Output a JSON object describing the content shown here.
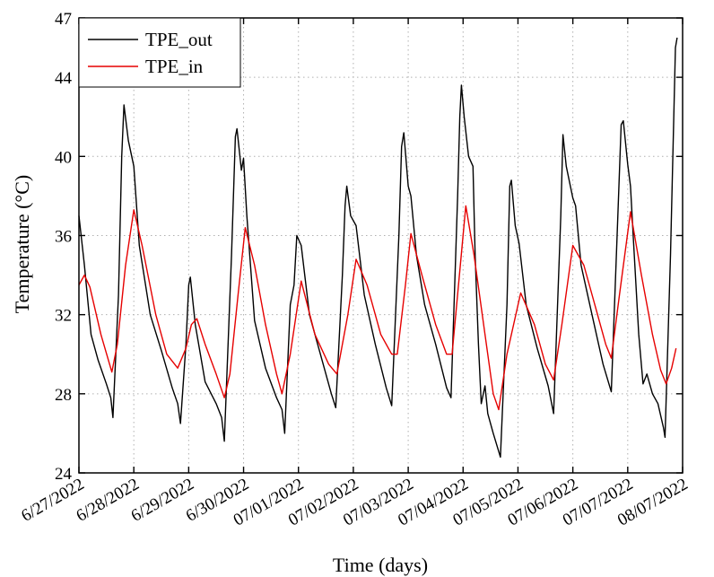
{
  "chart_data": {
    "type": "line",
    "title": "",
    "xlabel": "Time (days)",
    "ylabel": "Temperature (°C)",
    "ylim": [
      24,
      47
    ],
    "xlim": [
      0,
      11
    ],
    "y_ticks": [
      24,
      28,
      32,
      36,
      40,
      44,
      47
    ],
    "x_tick_labels": [
      "6/27/2022",
      "6/28/2022",
      "6/29/2022",
      "6/30/2022",
      "07/01/2022",
      "07/02/2022",
      "07/03/2022",
      "07/04/2022",
      "07/05/2022",
      "07/06/2022",
      "07/07/2022",
      "08/07/2022"
    ],
    "grid": true,
    "legend_position": "top-left",
    "series": [
      {
        "name": "TPE_out",
        "color": "#000000",
        "points": [
          [
            0.0,
            37.0
          ],
          [
            0.1,
            34.5
          ],
          [
            0.22,
            31.0
          ],
          [
            0.35,
            29.7
          ],
          [
            0.5,
            28.5
          ],
          [
            0.58,
            27.8
          ],
          [
            0.62,
            26.8
          ],
          [
            0.72,
            33.0
          ],
          [
            0.78,
            40.0
          ],
          [
            0.82,
            42.6
          ],
          [
            0.9,
            40.8
          ],
          [
            1.0,
            39.5
          ],
          [
            1.1,
            35.5
          ],
          [
            1.3,
            32.0
          ],
          [
            1.5,
            30.2
          ],
          [
            1.7,
            28.3
          ],
          [
            1.8,
            27.5
          ],
          [
            1.85,
            26.5
          ],
          [
            1.95,
            30.5
          ],
          [
            2.0,
            33.5
          ],
          [
            2.03,
            33.9
          ],
          [
            2.12,
            31.5
          ],
          [
            2.3,
            28.6
          ],
          [
            2.5,
            27.5
          ],
          [
            2.6,
            26.8
          ],
          [
            2.65,
            25.6
          ],
          [
            2.78,
            35.0
          ],
          [
            2.85,
            41.0
          ],
          [
            2.88,
            41.4
          ],
          [
            2.96,
            39.3
          ],
          [
            3.0,
            39.9
          ],
          [
            3.06,
            37.0
          ],
          [
            3.2,
            31.7
          ],
          [
            3.4,
            29.3
          ],
          [
            3.6,
            27.8
          ],
          [
            3.7,
            27.2
          ],
          [
            3.75,
            26.0
          ],
          [
            3.85,
            32.5
          ],
          [
            3.92,
            33.5
          ],
          [
            3.97,
            36.0
          ],
          [
            4.05,
            35.5
          ],
          [
            4.2,
            32.0
          ],
          [
            4.4,
            30.0
          ],
          [
            4.6,
            28.0
          ],
          [
            4.68,
            27.3
          ],
          [
            4.8,
            34.0
          ],
          [
            4.85,
            37.5
          ],
          [
            4.88,
            38.5
          ],
          [
            4.95,
            37.0
          ],
          [
            5.05,
            36.5
          ],
          [
            5.2,
            33.0
          ],
          [
            5.4,
            30.5
          ],
          [
            5.6,
            28.3
          ],
          [
            5.7,
            27.4
          ],
          [
            5.83,
            36.0
          ],
          [
            5.88,
            40.5
          ],
          [
            5.92,
            41.2
          ],
          [
            6.0,
            38.5
          ],
          [
            6.05,
            38.0
          ],
          [
            6.15,
            35.0
          ],
          [
            6.3,
            32.5
          ],
          [
            6.5,
            30.5
          ],
          [
            6.7,
            28.3
          ],
          [
            6.78,
            27.8
          ],
          [
            6.9,
            38.0
          ],
          [
            6.94,
            42.0
          ],
          [
            6.97,
            43.6
          ],
          [
            7.02,
            42.0
          ],
          [
            7.1,
            40.0
          ],
          [
            7.18,
            39.5
          ],
          [
            7.22,
            35.0
          ],
          [
            7.28,
            30.5
          ],
          [
            7.33,
            27.5
          ],
          [
            7.4,
            28.4
          ],
          [
            7.45,
            27.0
          ],
          [
            7.55,
            26.0
          ],
          [
            7.68,
            24.8
          ],
          [
            7.8,
            32.5
          ],
          [
            7.85,
            38.5
          ],
          [
            7.88,
            38.8
          ],
          [
            7.95,
            36.5
          ],
          [
            8.02,
            35.6
          ],
          [
            8.15,
            32.5
          ],
          [
            8.35,
            30.3
          ],
          [
            8.55,
            28.4
          ],
          [
            8.65,
            27.0
          ],
          [
            8.78,
            37.0
          ],
          [
            8.82,
            41.1
          ],
          [
            8.88,
            39.5
          ],
          [
            9.0,
            37.9
          ],
          [
            9.05,
            37.5
          ],
          [
            9.15,
            34.5
          ],
          [
            9.35,
            32.0
          ],
          [
            9.55,
            29.5
          ],
          [
            9.7,
            28.1
          ],
          [
            9.82,
            37.0
          ],
          [
            9.88,
            41.6
          ],
          [
            9.92,
            41.8
          ],
          [
            10.0,
            39.6
          ],
          [
            10.05,
            38.5
          ],
          [
            10.1,
            36.0
          ],
          [
            10.2,
            31.0
          ],
          [
            10.28,
            28.5
          ],
          [
            10.35,
            29.0
          ],
          [
            10.45,
            28.0
          ],
          [
            10.55,
            27.5
          ],
          [
            10.65,
            26.3
          ],
          [
            10.68,
            25.8
          ],
          [
            10.78,
            35.0
          ],
          [
            10.87,
            45.5
          ],
          [
            10.9,
            46.0
          ]
        ]
      },
      {
        "name": "TPE_in",
        "color": "#e60000",
        "points": [
          [
            0.0,
            33.5
          ],
          [
            0.1,
            34.0
          ],
          [
            0.2,
            33.4
          ],
          [
            0.4,
            31.0
          ],
          [
            0.6,
            29.1
          ],
          [
            0.7,
            30.5
          ],
          [
            0.85,
            34.5
          ],
          [
            1.0,
            37.3
          ],
          [
            1.15,
            35.5
          ],
          [
            1.4,
            32.0
          ],
          [
            1.6,
            30.0
          ],
          [
            1.8,
            29.3
          ],
          [
            1.95,
            30.3
          ],
          [
            2.05,
            31.5
          ],
          [
            2.15,
            31.8
          ],
          [
            2.3,
            30.5
          ],
          [
            2.5,
            29.0
          ],
          [
            2.65,
            27.8
          ],
          [
            2.75,
            29.0
          ],
          [
            2.9,
            33.0
          ],
          [
            3.03,
            36.4
          ],
          [
            3.2,
            34.5
          ],
          [
            3.4,
            31.5
          ],
          [
            3.6,
            29.0
          ],
          [
            3.7,
            28.0
          ],
          [
            3.85,
            30.0
          ],
          [
            4.05,
            33.7
          ],
          [
            4.3,
            31.0
          ],
          [
            4.55,
            29.5
          ],
          [
            4.7,
            29.0
          ],
          [
            4.9,
            32.0
          ],
          [
            5.05,
            34.8
          ],
          [
            5.25,
            33.5
          ],
          [
            5.5,
            31.0
          ],
          [
            5.7,
            30.0
          ],
          [
            5.8,
            30.0
          ],
          [
            5.95,
            33.5
          ],
          [
            6.05,
            36.1
          ],
          [
            6.25,
            34.0
          ],
          [
            6.5,
            31.5
          ],
          [
            6.7,
            30.0
          ],
          [
            6.8,
            30.0
          ],
          [
            6.95,
            34.5
          ],
          [
            7.05,
            37.5
          ],
          [
            7.2,
            35.0
          ],
          [
            7.4,
            31.0
          ],
          [
            7.55,
            28.0
          ],
          [
            7.65,
            27.2
          ],
          [
            7.8,
            30.0
          ],
          [
            8.05,
            33.1
          ],
          [
            8.3,
            31.5
          ],
          [
            8.5,
            29.5
          ],
          [
            8.65,
            28.7
          ],
          [
            8.8,
            31.5
          ],
          [
            9.0,
            35.5
          ],
          [
            9.2,
            34.5
          ],
          [
            9.45,
            32.0
          ],
          [
            9.6,
            30.5
          ],
          [
            9.7,
            29.8
          ],
          [
            9.85,
            33.0
          ],
          [
            10.05,
            37.2
          ],
          [
            10.25,
            34.0
          ],
          [
            10.45,
            31.0
          ],
          [
            10.6,
            29.2
          ],
          [
            10.7,
            28.5
          ],
          [
            10.8,
            29.3
          ],
          [
            10.88,
            30.3
          ]
        ]
      }
    ]
  }
}
